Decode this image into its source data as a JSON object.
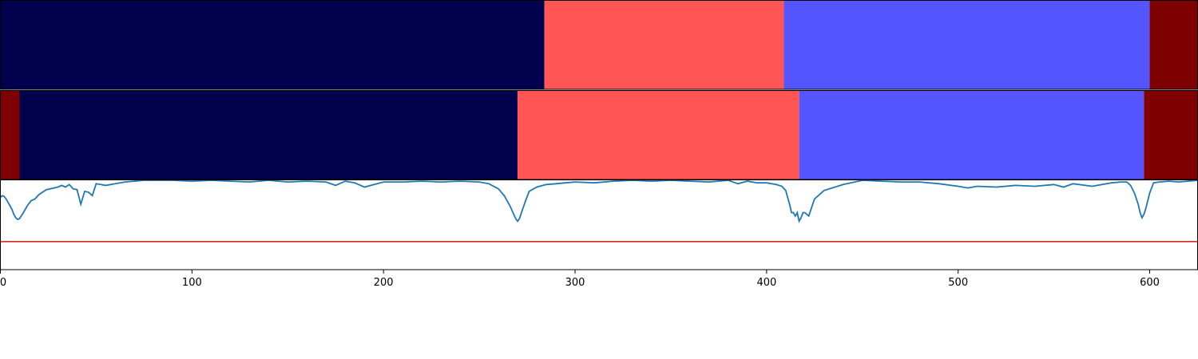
{
  "chart_data": [
    {
      "type": "bar",
      "orientation": "horizontal-segments",
      "segments": [
        {
          "start": 0,
          "end": 284,
          "color": "#00004c"
        },
        {
          "start": 284,
          "end": 409,
          "color": "#ff5555"
        },
        {
          "start": 409,
          "end": 600,
          "color": "#5555ff"
        },
        {
          "start": 600,
          "end": 625,
          "color": "#7f0000"
        }
      ]
    },
    {
      "type": "bar",
      "orientation": "horizontal-segments",
      "segments": [
        {
          "start": 0,
          "end": 10,
          "color": "#7f0000"
        },
        {
          "start": 10,
          "end": 270,
          "color": "#00004c"
        },
        {
          "start": 270,
          "end": 417,
          "color": "#ff5555"
        },
        {
          "start": 417,
          "end": 597,
          "color": "#5555ff"
        },
        {
          "start": 597,
          "end": 625,
          "color": "#7f0000"
        }
      ]
    },
    {
      "type": "line",
      "xlim": [
        0,
        625
      ],
      "ylim": [
        -0.05,
        1.0
      ],
      "xticks": [
        "0",
        "100",
        "200",
        "300",
        "400",
        "500",
        "600"
      ],
      "xtick_values": [
        0,
        100,
        200,
        300,
        400,
        500,
        600
      ],
      "threshold": {
        "value": 0.28,
        "color": "#d62728"
      },
      "line_color": "#1f77b4",
      "series": [
        {
          "x": [
            0,
            1,
            2,
            3,
            4,
            5,
            6,
            7,
            8,
            9,
            10,
            12,
            14,
            16,
            18,
            20,
            22,
            24,
            26,
            28,
            30,
            32,
            34,
            36,
            38,
            40,
            42,
            44,
            46,
            48,
            50,
            55,
            60,
            65,
            70,
            75,
            80,
            90,
            100,
            110,
            120,
            130,
            140,
            150,
            160,
            170,
            175,
            180,
            185,
            190,
            200,
            210,
            220,
            230,
            240,
            250,
            255,
            260,
            263,
            266,
            268,
            269,
            270,
            271,
            272,
            274,
            276,
            280,
            285,
            290,
            295,
            300,
            310,
            320,
            330,
            340,
            350,
            360,
            370,
            380,
            385,
            390,
            395,
            400,
            405,
            408,
            410,
            412,
            413,
            414,
            415,
            416,
            417,
            418,
            419,
            420,
            422,
            425,
            430,
            440,
            450,
            460,
            470,
            480,
            490,
            500,
            505,
            510,
            520,
            530,
            540,
            550,
            555,
            560,
            570,
            580,
            585,
            588,
            590,
            592,
            594,
            595,
            596,
            597,
            598,
            600,
            602,
            605,
            610,
            615,
            620,
            625
          ],
          "y": [
            0.8,
            0.82,
            0.81,
            0.78,
            0.74,
            0.7,
            0.66,
            0.6,
            0.56,
            0.54,
            0.55,
            0.62,
            0.7,
            0.76,
            0.78,
            0.83,
            0.86,
            0.89,
            0.9,
            0.91,
            0.92,
            0.94,
            0.92,
            0.95,
            0.9,
            0.89,
            0.72,
            0.87,
            0.86,
            0.82,
            0.96,
            0.94,
            0.96,
            0.98,
            0.99,
            1.0,
            1.0,
            1.0,
            0.99,
            1.0,
            0.99,
            0.98,
            1.0,
            0.98,
            0.99,
            0.98,
            0.94,
            0.99,
            0.97,
            0.92,
            0.98,
            0.98,
            0.99,
            0.98,
            0.99,
            0.98,
            0.96,
            0.9,
            0.82,
            0.7,
            0.6,
            0.55,
            0.52,
            0.55,
            0.62,
            0.75,
            0.87,
            0.92,
            0.95,
            0.96,
            0.97,
            0.98,
            0.97,
            0.99,
            1.0,
            0.99,
            1.0,
            0.99,
            0.98,
            1.0,
            0.96,
            0.99,
            0.97,
            0.97,
            0.95,
            0.93,
            0.88,
            0.72,
            0.62,
            0.62,
            0.58,
            0.62,
            0.52,
            0.56,
            0.62,
            0.62,
            0.58,
            0.78,
            0.88,
            0.95,
            1.0,
            0.99,
            0.98,
            0.98,
            0.96,
            0.93,
            0.91,
            0.93,
            0.92,
            0.94,
            0.93,
            0.95,
            0.92,
            0.96,
            0.93,
            0.97,
            0.98,
            0.98,
            0.94,
            0.85,
            0.72,
            0.62,
            0.56,
            0.6,
            0.67,
            0.85,
            0.97,
            0.98,
            0.99,
            0.98,
            0.99,
            1.0
          ]
        }
      ]
    }
  ]
}
